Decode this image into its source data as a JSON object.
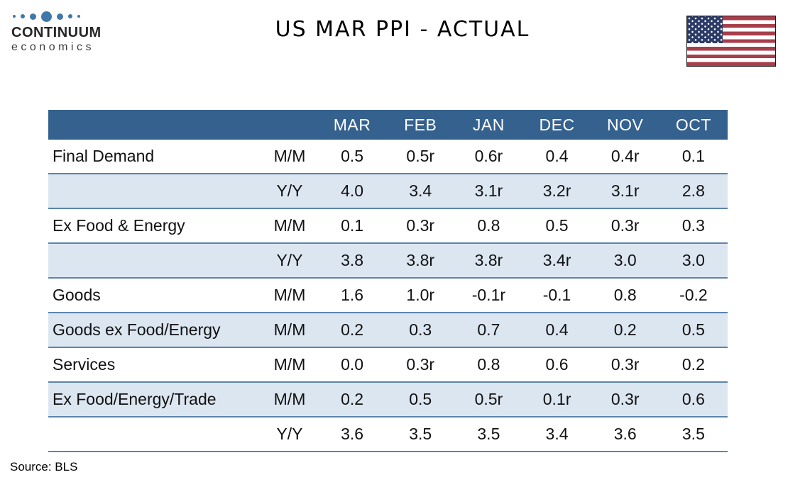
{
  "logo": {
    "brand": "CONTINUUM",
    "sub": "economics"
  },
  "icons": {
    "flag": "us-flag-icon",
    "logo_dots": "continuum-dots-icon"
  },
  "colors": {
    "header_blue": "#35618E",
    "row_blue": "#DCE6F1",
    "border_blue": "#5D83AD",
    "logo_blue": "#4078A8",
    "flag_red": "#A73E4B",
    "flag_navy": "#2B3A66",
    "text": "#111111"
  },
  "chart_data": {
    "type": "table",
    "title": "US MAR PPI - ACTUAL",
    "columns": [
      "",
      "",
      "MAR",
      "FEB",
      "JAN",
      "DEC",
      "NOV",
      "OCT"
    ],
    "rows": [
      {
        "label": "Final Demand",
        "measure": "M/M",
        "values": [
          "0.5",
          "0.5r",
          "0.6r",
          "0.4",
          "0.4r",
          "0.1"
        ],
        "shaded": false
      },
      {
        "label": "",
        "measure": "Y/Y",
        "values": [
          "4.0",
          "3.4",
          "3.1r",
          "3.2r",
          "3.1r",
          "2.8"
        ],
        "shaded": true
      },
      {
        "label": "Ex Food & Energy",
        "measure": "M/M",
        "values": [
          "0.1",
          "0.3r",
          "0.8",
          "0.5",
          "0.3r",
          "0.3"
        ],
        "shaded": false
      },
      {
        "label": "",
        "measure": "Y/Y",
        "values": [
          "3.8",
          "3.8r",
          "3.8r",
          "3.4r",
          "3.0",
          "3.0"
        ],
        "shaded": true
      },
      {
        "label": "Goods",
        "measure": "M/M",
        "values": [
          "1.6",
          "1.0r",
          "-0.1r",
          "-0.1",
          "0.8",
          "-0.2"
        ],
        "shaded": false
      },
      {
        "label": "Goods ex Food/Energy",
        "measure": "M/M",
        "values": [
          "0.2",
          "0.3",
          "0.7",
          "0.4",
          "0.2",
          "0.5"
        ],
        "shaded": true
      },
      {
        "label": "Services",
        "measure": "M/M",
        "values": [
          "0.0",
          "0.3r",
          "0.8",
          "0.6",
          "0.3r",
          "0.2"
        ],
        "shaded": false
      },
      {
        "label": "Ex Food/Energy/Trade",
        "measure": "M/M",
        "values": [
          "0.2",
          "0.5",
          "0.5r",
          "0.1r",
          "0.3r",
          "0.6"
        ],
        "shaded": true
      },
      {
        "label": "",
        "measure": "Y/Y",
        "values": [
          "3.6",
          "3.5",
          "3.5",
          "3.4",
          "3.6",
          "3.5"
        ],
        "shaded": false
      }
    ],
    "source": "Source: BLS"
  }
}
